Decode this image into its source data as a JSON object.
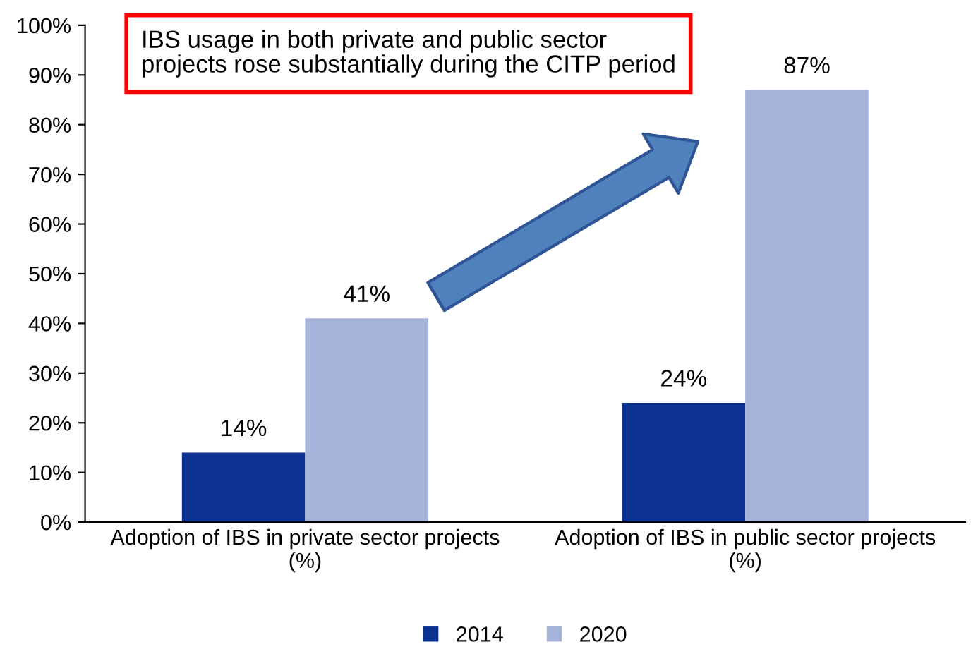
{
  "chart_data": {
    "type": "bar",
    "categories": [
      "Adoption of IBS in private sector projects\n(%)",
      "Adoption of IBS in public sector projects\n(%)"
    ],
    "series": [
      {
        "name": "2014",
        "color": "#0b3290",
        "values": [
          14,
          24
        ],
        "value_labels": [
          "14%",
          "24%"
        ]
      },
      {
        "name": "2020",
        "color": "#a6b4dc",
        "values": [
          41,
          87
        ],
        "value_labels": [
          "41%",
          "87%"
        ]
      }
    ],
    "ylim": [
      0,
      100
    ],
    "yticks": [
      {
        "value": 0,
        "label": "0%"
      },
      {
        "value": 10,
        "label": "10%"
      },
      {
        "value": 20,
        "label": "20%"
      },
      {
        "value": 30,
        "label": "30%"
      },
      {
        "value": 40,
        "label": "40%"
      },
      {
        "value": 50,
        "label": "50%"
      },
      {
        "value": 60,
        "label": "60%"
      },
      {
        "value": 70,
        "label": "70%"
      },
      {
        "value": 80,
        "label": "80%"
      },
      {
        "value": 90,
        "label": "90%"
      },
      {
        "value": 100,
        "label": "100%"
      }
    ],
    "annotations": [
      "IBS usage in both private and public sector projects rose substantially during the CITP period"
    ],
    "grid": false,
    "legend": "bottom"
  }
}
